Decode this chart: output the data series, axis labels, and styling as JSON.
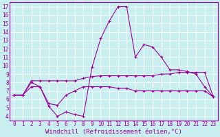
{
  "bg_color": "#c8eef0",
  "grid_color": "#ffffff",
  "line_color": "#990099",
  "marker": "+",
  "markersize": 3,
  "linewidth": 0.8,
  "markeredgewidth": 0.8,
  "xlabel": "Windchill (Refroidissement éolien,°C)",
  "xlabel_fontsize": 6.5,
  "tick_fontsize": 5.5,
  "xlim": [
    -0.5,
    23.5
  ],
  "ylim": [
    3.5,
    17.5
  ],
  "yticks": [
    4,
    5,
    6,
    7,
    8,
    9,
    10,
    11,
    12,
    13,
    14,
    15,
    16,
    17
  ],
  "xticks": [
    0,
    1,
    2,
    3,
    4,
    5,
    6,
    7,
    8,
    9,
    10,
    11,
    12,
    13,
    14,
    15,
    16,
    17,
    18,
    19,
    20,
    21,
    22,
    23
  ],
  "series_x": [
    0,
    1,
    2,
    3,
    4,
    5,
    6,
    7,
    8,
    9,
    10,
    11,
    12,
    13,
    14,
    15,
    16,
    17,
    18,
    19,
    20,
    21,
    22,
    23
  ],
  "series1_y": [
    6.5,
    6.5,
    8.0,
    7.5,
    5.2,
    4.0,
    4.5,
    4.2,
    4.0,
    9.8,
    13.2,
    15.3,
    17.0,
    17.0,
    11.0,
    12.5,
    12.2,
    11.0,
    9.5,
    9.5,
    9.3,
    9.0,
    7.5,
    6.3
  ],
  "series2_y": [
    6.5,
    6.5,
    8.2,
    8.2,
    8.2,
    8.2,
    8.2,
    8.2,
    8.5,
    8.7,
    8.8,
    8.8,
    8.8,
    8.8,
    8.8,
    8.8,
    8.8,
    9.0,
    9.0,
    9.2,
    9.2,
    9.2,
    9.2,
    6.3
  ],
  "series3_y": [
    6.5,
    6.5,
    7.5,
    7.5,
    5.5,
    5.3,
    6.5,
    7.0,
    7.5,
    7.5,
    7.5,
    7.5,
    7.3,
    7.3,
    7.0,
    7.0,
    7.0,
    7.0,
    7.0,
    7.0,
    7.0,
    7.0,
    7.0,
    6.3
  ]
}
